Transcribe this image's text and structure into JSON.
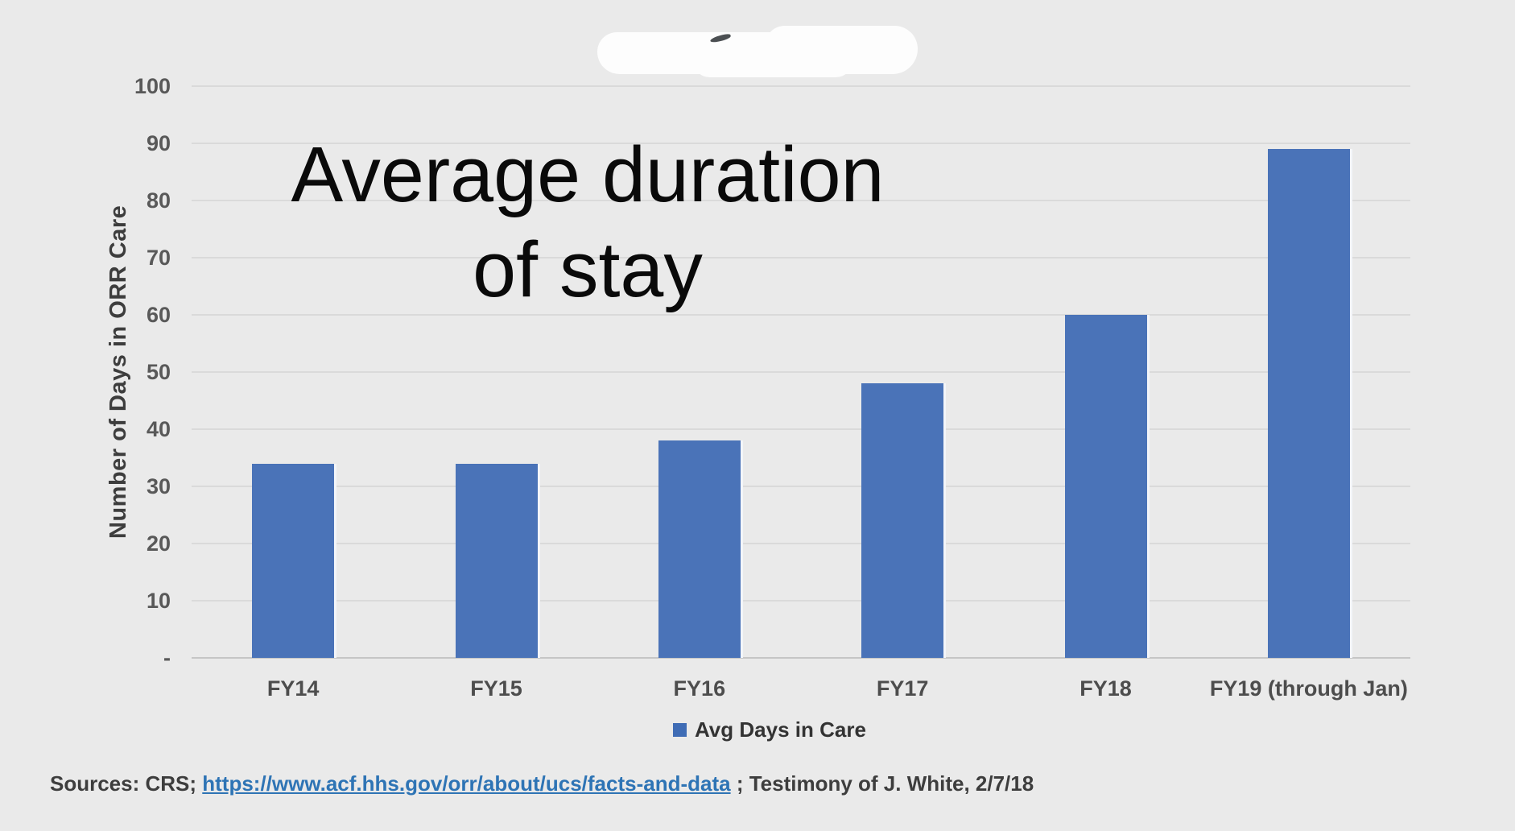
{
  "overlay_title": {
    "line1": "Average duration",
    "line2": "of stay"
  },
  "chart_data": {
    "type": "bar",
    "title": "Average duration of stay",
    "categories": [
      "FY14",
      "FY15",
      "FY16",
      "FY17",
      "FY18",
      "FY19 (through Jan)"
    ],
    "values": [
      34,
      34,
      38,
      48,
      60,
      89
    ],
    "xlabel": "",
    "ylabel": "Number of Days in ORR Care",
    "ylim": [
      0,
      100
    ],
    "yticks": [
      0,
      10,
      20,
      30,
      40,
      50,
      60,
      70,
      80,
      90,
      100
    ],
    "ytick_labels": [
      "-",
      "10",
      "20",
      "30",
      "40",
      "50",
      "60",
      "70",
      "80",
      "90",
      "100"
    ],
    "grid": true,
    "legend": {
      "label": "Avg Days in Care",
      "position": "bottom",
      "swatch_color": "#3f6cb5"
    },
    "bar_color": "#4a73b8"
  },
  "sources": {
    "prefix": "Sources: CRS; ",
    "link_text": "https://www.acf.hhs.gov/orr/about/ucs/facts-and-data",
    "suffix": " ; Testimony of J. White, 2/7/18"
  },
  "colors": {
    "background": "#eaeaea",
    "gridline": "#dadada",
    "axis_line": "#c6c6c6",
    "bar": "#4a73b8",
    "tick_text": "#595959",
    "link": "#2e74b5"
  }
}
